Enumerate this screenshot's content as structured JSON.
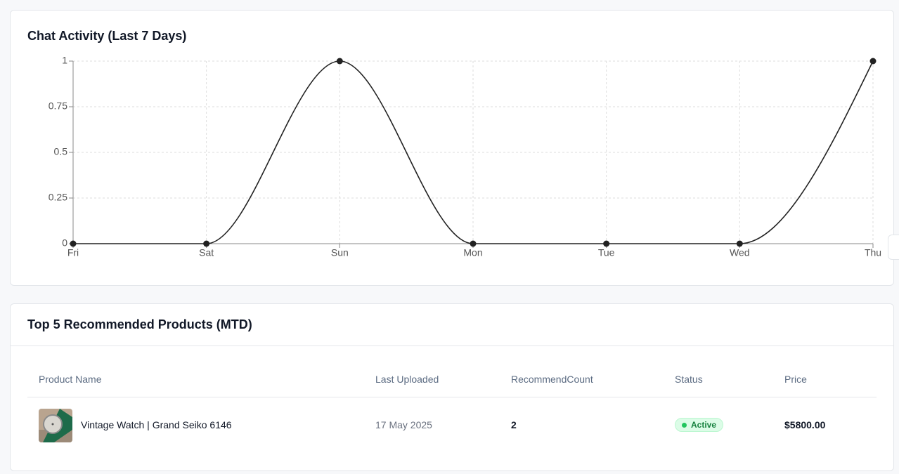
{
  "chart_data": {
    "type": "line",
    "title": "Chat Activity (Last 7 Days)",
    "categories": [
      "Fri",
      "Sat",
      "Sun",
      "Mon",
      "Tue",
      "Wed",
      "Thu"
    ],
    "values": [
      0,
      0,
      1,
      0,
      0,
      0,
      1
    ],
    "color": "#222222",
    "ylim": [
      0,
      1
    ],
    "yticks": [
      0,
      0.25,
      0.5,
      0.75,
      1
    ],
    "grid": true
  },
  "products": {
    "title": "Top 5 Recommended Products (MTD)",
    "columns": [
      "Product Name",
      "Last Uploaded",
      "RecommendCount",
      "Status",
      "Price"
    ],
    "rows": [
      [
        "Vintage Watch | Grand Seiko 6146",
        "17 May 2025",
        2,
        "Active",
        "$5800.00"
      ]
    ]
  }
}
